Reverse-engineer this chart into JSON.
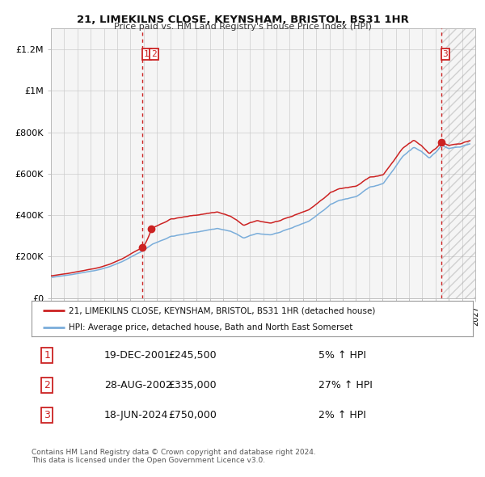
{
  "title1": "21, LIMEKILNS CLOSE, KEYNSHAM, BRISTOL, BS31 1HR",
  "title2": "Price paid vs. HM Land Registry's House Price Index (HPI)",
  "legend1": "21, LIMEKILNS CLOSE, KEYNSHAM, BRISTOL, BS31 1HR (detached house)",
  "legend2": "HPI: Average price, detached house, Bath and North East Somerset",
  "sale1_date": "19-DEC-2001",
  "sale1_price": 245500,
  "sale1_pct": "5% ↑ HPI",
  "sale2_date": "28-AUG-2002",
  "sale2_price": 335000,
  "sale2_pct": "27% ↑ HPI",
  "sale3_date": "18-JUN-2024",
  "sale3_price": 750000,
  "sale3_pct": "2% ↑ HPI",
  "footnote1": "Contains HM Land Registry data © Crown copyright and database right 2024.",
  "footnote2": "This data is licensed under the Open Government Licence v3.0.",
  "hpi_line_color": "#7aadda",
  "price_line_color": "#cc2222",
  "sale_dot_color": "#cc2222",
  "vline_color": "#cc2222",
  "grid_color": "#cccccc",
  "plot_bg": "#f5f5f5",
  "fig_bg": "#ffffff",
  "ytick_labels": [
    "£0",
    "£200K",
    "£400K",
    "£600K",
    "£800K",
    "£1M",
    "£1.2M"
  ],
  "yticks": [
    0,
    200000,
    400000,
    600000,
    800000,
    1000000,
    1200000
  ]
}
